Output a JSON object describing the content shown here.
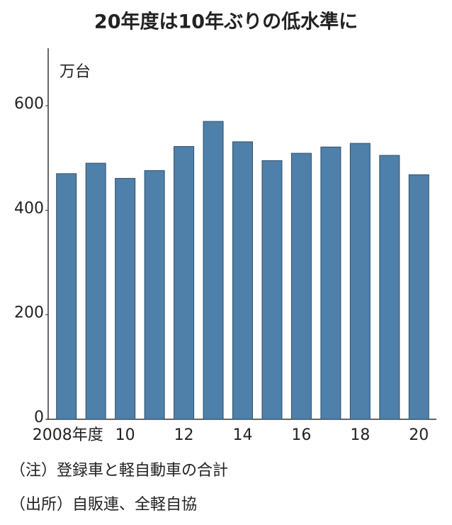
{
  "chart_data": {
    "type": "bar",
    "title": "20年度は10年ぶりの低水準に",
    "y_label": "万台",
    "categories": [
      "2008年度",
      null,
      "10",
      null,
      "12",
      null,
      "14",
      null,
      "16",
      null,
      "18",
      null,
      "20"
    ],
    "values": [
      470,
      490,
      461,
      476,
      522,
      570,
      531,
      495,
      509,
      521,
      528,
      505,
      468
    ],
    "color": "#4f80a9",
    "ylim": [
      0,
      710
    ],
    "yticks": [
      0,
      200,
      400,
      600
    ],
    "grid": false,
    "notes": [
      "（注）登録車と軽自動車の合計",
      "（出所）自販連、全軽自協"
    ]
  }
}
